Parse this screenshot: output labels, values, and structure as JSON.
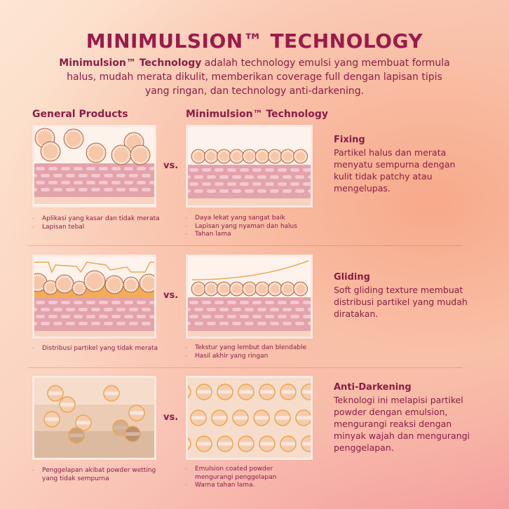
{
  "title": "MINIMULSION™ TECHNOLOGY",
  "subtitle": {
    "bold": "Minimulsion™ Technology",
    "text": " adalah technology emulsi yang membuat formula halus,  mudah merata dikulit, memberikan coverage full dengan lapisan tipis yang ringan, dan technology anti-darkening."
  },
  "columns": {
    "left": "General Products",
    "right": "Minimulsion™ Technology"
  },
  "vs": "vs.",
  "rows": [
    {
      "title": "Fixing",
      "desc": "Partikel halus dan merata menyatu sempurna dengan kulit tidak patchy atau mengelupas.",
      "left_bullets": [
        "Aplikasi yang kasar dan tidak merata",
        "Lapisan tebal"
      ],
      "right_bullets": [
        "Daya lekat yang sangat baik",
        "Lapisan yang nyaman dan halus",
        "Tahan lama"
      ]
    },
    {
      "title": "Gliding",
      "desc": "Soft gliding texture membuat distribusi partikel yang mudah diratakan.",
      "left_bullets": [
        "Distribusi partikel yang tidak merata"
      ],
      "right_bullets": [
        "Tekstur yang lembut dan blendable",
        "Hasil akhir yang ringan"
      ]
    },
    {
      "title": "Anti-Darkening",
      "desc": "Teknologi ini melapisi partikel powder dengan emulsion, mengurangi reaksi dengan minyak wajah dan mengurangi penggelapan.",
      "left_bullets": [
        "Penggelapan akibat powder wetting yang tidak sempurna"
      ],
      "right_bullets": [
        "Emulsion coated powder mengurangi penggelapan",
        "Warna tahan lama."
      ]
    }
  ],
  "colors": {
    "accent": "#8a1d45",
    "skin": "#e8a6ad",
    "particle": "#f6c9ac",
    "coat": "#e8a955"
  }
}
